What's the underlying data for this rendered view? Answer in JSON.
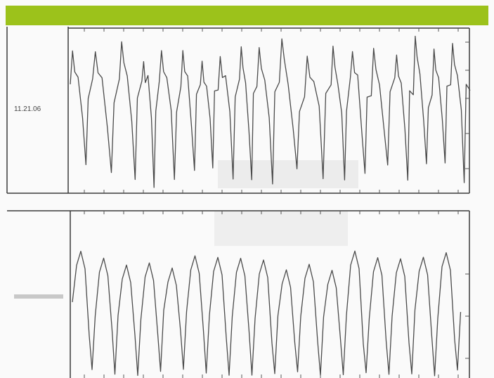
{
  "panels": [
    {
      "label": "11.21.06"
    }
  ]
}
